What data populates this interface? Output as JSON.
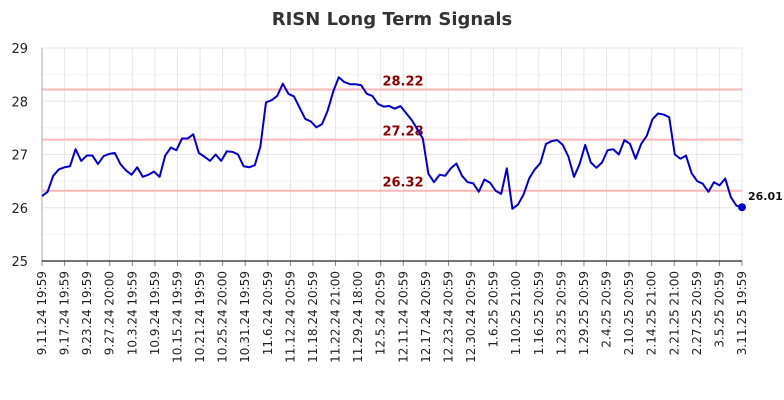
{
  "chart_data": {
    "type": "line",
    "title": "RISN Long Term Signals",
    "ylim": [
      25,
      29
    ],
    "yticks": [
      25,
      26,
      27,
      28,
      29
    ],
    "xtick_labels": [
      "9.11.24 19:59",
      "9.17.24 19:59",
      "9.23.24 19:59",
      "9.27.24 20:00",
      "10.3.24 19:59",
      "10.9.24 19:59",
      "10.15.24 19:59",
      "10.21.24 19:59",
      "10.25.24 20:00",
      "10.31.24 19:59",
      "11.6.24 20:59",
      "11.12.24 20:59",
      "11.18.24 20:59",
      "11.22.24 21:00",
      "11.29.24 18:00",
      "12.5.24 20:59",
      "12.11.24 20:59",
      "12.17.24 20:59",
      "12.23.24 20:59",
      "12.30.24 20:59",
      "1.6.25 20:59",
      "1.10.25 21:00",
      "1.16.25 20:59",
      "1.23.25 20:59",
      "1.29.25 20:59",
      "2.4.25 20:59",
      "2.10.25 20:59",
      "2.14.25 21:00",
      "2.21.25 21:00",
      "2.27.25 20:59",
      "3.5.25 20:59",
      "3.11.25 19:59"
    ],
    "grid": true,
    "line_color": "#0000cc",
    "signal_color": "#ffb6b6",
    "signal_label_color": "#8b0000",
    "signals": [
      {
        "value": 28.22,
        "label": "28.22"
      },
      {
        "value": 27.28,
        "label": "27.28"
      },
      {
        "value": 26.32,
        "label": "26.32"
      }
    ],
    "last_value_label": "26.01",
    "series": [
      {
        "values": [
          26.22,
          26.3,
          26.6,
          26.72,
          26.76,
          26.78,
          27.1,
          26.88,
          26.98,
          26.98,
          26.82,
          26.97,
          27.01,
          27.03,
          26.82,
          26.7,
          26.62,
          26.76,
          26.58,
          26.62,
          26.68,
          26.58,
          26.98,
          27.13,
          27.08,
          27.3,
          27.3,
          27.38,
          27.03,
          26.96,
          26.88,
          27.0,
          26.88,
          27.06,
          27.05,
          27.0,
          26.78,
          26.76,
          26.8,
          27.15,
          27.98,
          28.02,
          28.1,
          28.33,
          28.14,
          28.09,
          27.88,
          27.67,
          27.62,
          27.51,
          27.57,
          27.82,
          28.18,
          28.45,
          28.36,
          28.32,
          28.32,
          28.3,
          28.14,
          28.1,
          27.95,
          27.9,
          27.91,
          27.86,
          27.91,
          27.78,
          27.65,
          27.48,
          27.3,
          26.64,
          26.48,
          26.62,
          26.6,
          26.74,
          26.83,
          26.6,
          26.48,
          26.46,
          26.3,
          26.53,
          26.47,
          26.32,
          26.26,
          26.74,
          25.98,
          26.06,
          26.25,
          26.55,
          26.72,
          26.84,
          27.2,
          27.25,
          27.27,
          27.18,
          26.96,
          26.58,
          26.82,
          27.18,
          26.85,
          26.75,
          26.85,
          27.08,
          27.1,
          27.0,
          27.27,
          27.2,
          26.92,
          27.2,
          27.35,
          27.66,
          27.77,
          27.75,
          27.7,
          27.0,
          26.92,
          26.98,
          26.65,
          26.5,
          26.45,
          26.3,
          26.48,
          26.42,
          26.55,
          26.2,
          26.04,
          26.01
        ]
      }
    ]
  }
}
